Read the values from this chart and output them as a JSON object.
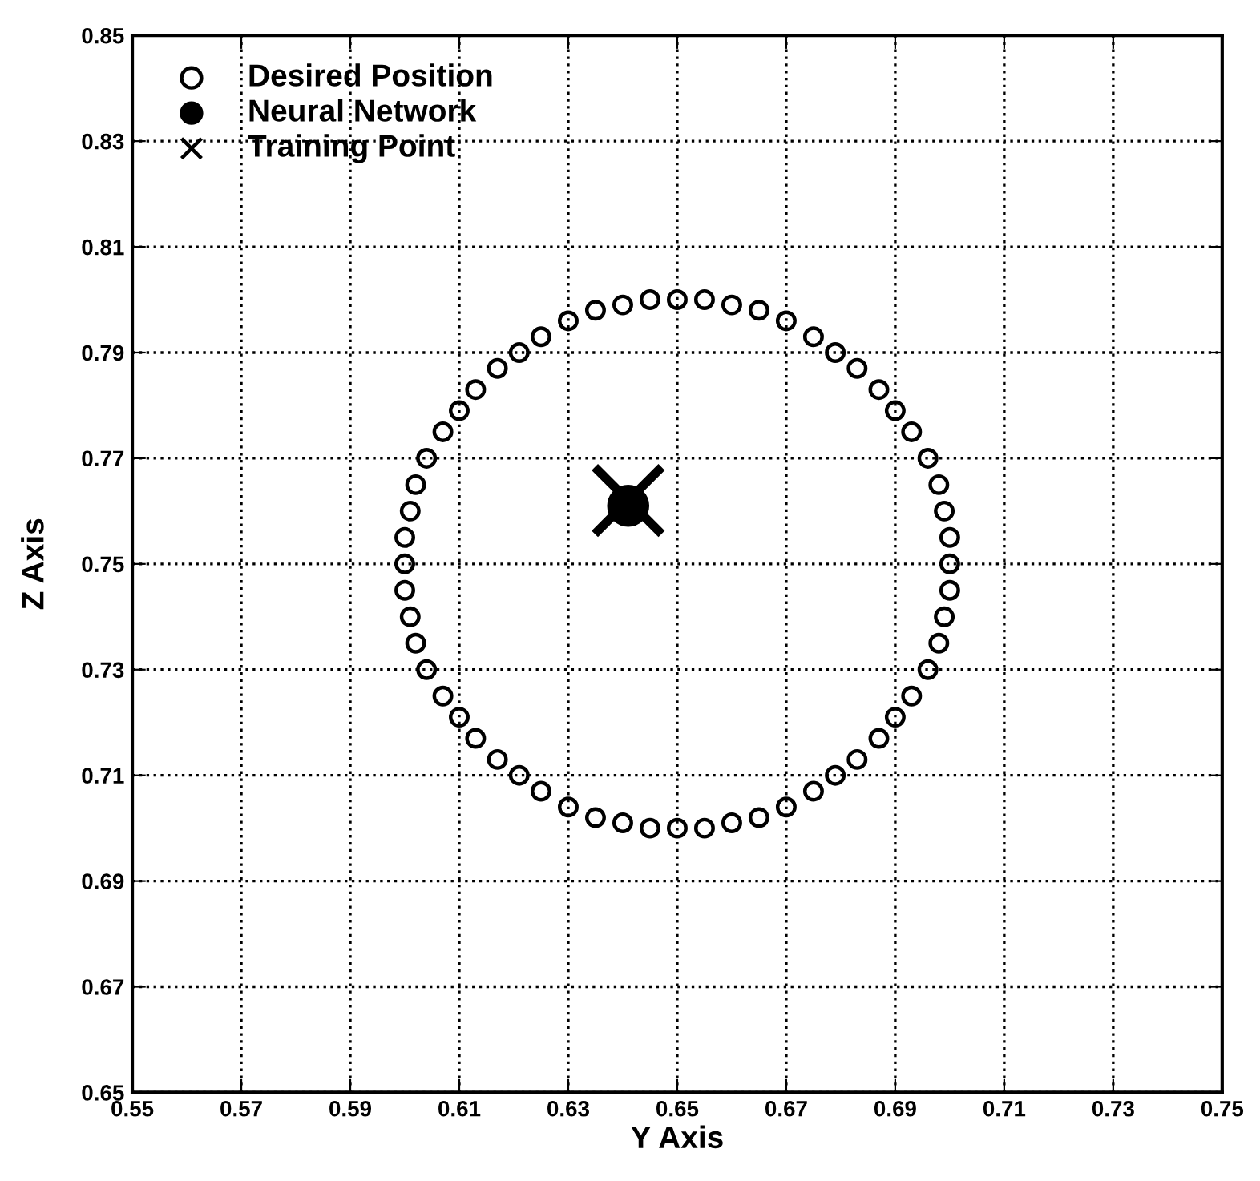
{
  "chart_data": {
    "type": "scatter",
    "xlabel": "Y Axis",
    "ylabel": "Z Axis",
    "xlim": [
      0.55,
      0.75
    ],
    "xticks": [
      0.55,
      0.57,
      0.59,
      0.61,
      0.63,
      0.65,
      0.67,
      0.69,
      0.71,
      0.73,
      0.75
    ],
    "ylim": [
      0.65,
      0.85
    ],
    "yticks": [
      0.65,
      0.67,
      0.69,
      0.71,
      0.73,
      0.75,
      0.77,
      0.79,
      0.81,
      0.83,
      0.85
    ],
    "grid": true,
    "line_style": "dotted",
    "legend": "top left",
    "series": [
      {
        "name": "Desired Position",
        "color": "#000000",
        "marker": "circle",
        "x": [
          0.7,
          0.7,
          0.699,
          0.698,
          0.696,
          0.693,
          0.69,
          0.687,
          0.683,
          0.679,
          0.675,
          0.67,
          0.665,
          0.66,
          0.655,
          0.65,
          0.645,
          0.64,
          0.635,
          0.63,
          0.625,
          0.621,
          0.617,
          0.613,
          0.61,
          0.607,
          0.604,
          0.602,
          0.601,
          0.6,
          0.6,
          0.6,
          0.601,
          0.602,
          0.604,
          0.607,
          0.61,
          0.613,
          0.617,
          0.621,
          0.625,
          0.63,
          0.635,
          0.64,
          0.645,
          0.65,
          0.655,
          0.66,
          0.665,
          0.67,
          0.675,
          0.679,
          0.683,
          0.687,
          0.69,
          0.693,
          0.696,
          0.698,
          0.699,
          0.7
        ],
        "values": [
          0.75,
          0.755,
          0.76,
          0.765,
          0.77,
          0.775,
          0.779,
          0.783,
          0.787,
          0.79,
          0.793,
          0.796,
          0.798,
          0.799,
          0.8,
          0.8,
          0.8,
          0.799,
          0.798,
          0.796,
          0.793,
          0.79,
          0.787,
          0.783,
          0.779,
          0.775,
          0.77,
          0.765,
          0.76,
          0.755,
          0.75,
          0.745,
          0.74,
          0.735,
          0.73,
          0.725,
          0.721,
          0.717,
          0.713,
          0.71,
          0.707,
          0.704,
          0.702,
          0.701,
          0.7,
          0.7,
          0.7,
          0.701,
          0.702,
          0.704,
          0.707,
          0.71,
          0.713,
          0.717,
          0.721,
          0.725,
          0.73,
          0.735,
          0.74,
          0.745
        ]
      },
      {
        "name": "Neural Network",
        "color": "#000000",
        "marker": "circle",
        "x": [
          0.641
        ],
        "values": [
          0.761
        ]
      },
      {
        "name": "Training Point",
        "color": "#000000",
        "marker": "cross",
        "x": [
          0.641
        ],
        "values": [
          0.762
        ]
      }
    ]
  }
}
